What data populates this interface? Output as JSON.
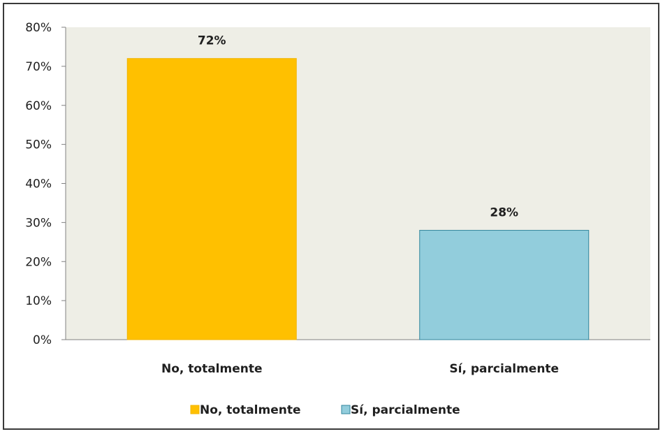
{
  "chart_data": {
    "type": "bar",
    "categories": [
      "No, totalmente",
      "Sí, parcialmente"
    ],
    "values": [
      72,
      28
    ],
    "data_labels": [
      "72%",
      "28%"
    ],
    "y_tick_labels": [
      "0%",
      "10%",
      "20%",
      "30%",
      "40%",
      "50%",
      "60%",
      "70%",
      "80%"
    ],
    "ylim": [
      0,
      80
    ],
    "y_step": 10,
    "title": "",
    "xlabel": "",
    "ylabel": "",
    "grid": false,
    "legend": {
      "position": "bottom",
      "entries": [
        "No, totalmente",
        "Sí, parcialmente"
      ]
    },
    "colors": {
      "bars": [
        "#FFC000",
        "#92CDDC"
      ],
      "bar_borders": [
        "#F0B400",
        "#31859C"
      ],
      "plot_background": "#EEEEE6",
      "axis": "#808080"
    }
  }
}
